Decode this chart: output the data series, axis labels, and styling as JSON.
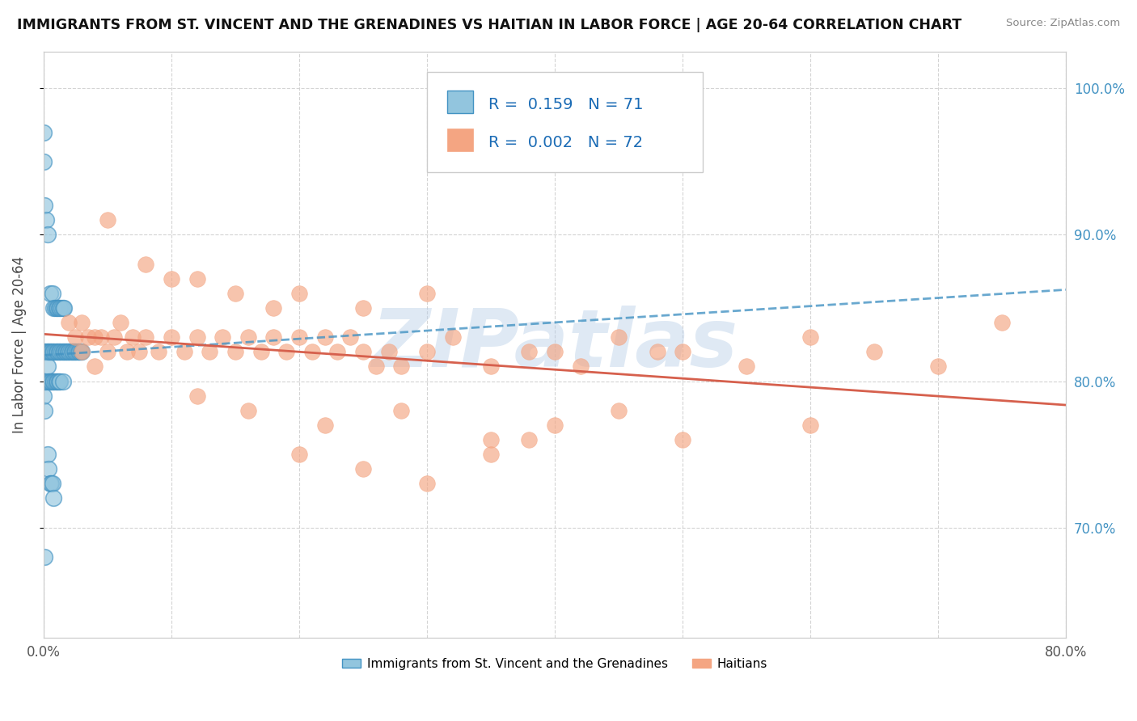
{
  "title": "IMMIGRANTS FROM ST. VINCENT AND THE GRENADINES VS HAITIAN IN LABOR FORCE | AGE 20-64 CORRELATION CHART",
  "source": "Source: ZipAtlas.com",
  "ylabel": "In Labor Force | Age 20-64",
  "xlim": [
    0.0,
    0.8
  ],
  "ylim": [
    0.625,
    1.025
  ],
  "yticks": [
    0.7,
    0.8,
    0.9,
    1.0
  ],
  "ytick_labels_left": [
    "70.0%",
    "80.0%",
    "90.0%",
    "100.0%"
  ],
  "ytick_labels_right": [
    "70.0%",
    "80.0%",
    "90.0%",
    "100.0%"
  ],
  "xtick_vals": [
    0.0,
    0.1,
    0.2,
    0.3,
    0.4,
    0.5,
    0.6,
    0.7,
    0.8
  ],
  "xtick_labels": [
    "0.0%",
    "",
    "",
    "",
    "",
    "",
    "",
    "",
    "80.0%"
  ],
  "color_blue": "#92c5de",
  "color_blue_edge": "#4393c3",
  "color_pink": "#f4a582",
  "color_pink_line": "#d6604d",
  "color_blue_line": "#4393c3",
  "watermark": "ZIPatlas",
  "watermark_color": "#b8cfe8",
  "legend1_label": "Immigrants from St. Vincent and the Grenadines",
  "legend2_label": "Haitians",
  "background_color": "#ffffff",
  "grid_color": "#d0d0d0",
  "blue_scatter_x": [
    0.0,
    0.0,
    0.0,
    0.001,
    0.001,
    0.001,
    0.002,
    0.002,
    0.003,
    0.003,
    0.004,
    0.004,
    0.005,
    0.005,
    0.006,
    0.006,
    0.007,
    0.007,
    0.008,
    0.008,
    0.009,
    0.009,
    0.01,
    0.01,
    0.011,
    0.011,
    0.012,
    0.012,
    0.013,
    0.013,
    0.014,
    0.015,
    0.015,
    0.016,
    0.017,
    0.018,
    0.019,
    0.02,
    0.021,
    0.022,
    0.023,
    0.024,
    0.025,
    0.026,
    0.027,
    0.028,
    0.029,
    0.03,
    0.005,
    0.007,
    0.008,
    0.009,
    0.01,
    0.011,
    0.012,
    0.013,
    0.014,
    0.015,
    0.016,
    0.003,
    0.004,
    0.005,
    0.006,
    0.007,
    0.008,
    0.001,
    0.002,
    0.003,
    0.0,
    0.0,
    0.001
  ],
  "blue_scatter_y": [
    0.82,
    0.8,
    0.79,
    0.82,
    0.8,
    0.78,
    0.82,
    0.8,
    0.82,
    0.81,
    0.82,
    0.8,
    0.82,
    0.8,
    0.82,
    0.8,
    0.82,
    0.8,
    0.82,
    0.8,
    0.82,
    0.8,
    0.82,
    0.8,
    0.82,
    0.8,
    0.82,
    0.8,
    0.82,
    0.8,
    0.82,
    0.82,
    0.8,
    0.82,
    0.82,
    0.82,
    0.82,
    0.82,
    0.82,
    0.82,
    0.82,
    0.82,
    0.82,
    0.82,
    0.82,
    0.82,
    0.82,
    0.82,
    0.86,
    0.86,
    0.85,
    0.85,
    0.85,
    0.85,
    0.85,
    0.85,
    0.85,
    0.85,
    0.85,
    0.75,
    0.74,
    0.73,
    0.73,
    0.73,
    0.72,
    0.92,
    0.91,
    0.9,
    0.97,
    0.95,
    0.68
  ],
  "pink_scatter_x": [
    0.02,
    0.025,
    0.03,
    0.03,
    0.035,
    0.04,
    0.04,
    0.045,
    0.05,
    0.055,
    0.06,
    0.065,
    0.07,
    0.075,
    0.08,
    0.09,
    0.1,
    0.11,
    0.12,
    0.13,
    0.14,
    0.15,
    0.16,
    0.17,
    0.18,
    0.19,
    0.2,
    0.21,
    0.22,
    0.23,
    0.24,
    0.25,
    0.26,
    0.27,
    0.28,
    0.3,
    0.32,
    0.35,
    0.38,
    0.4,
    0.42,
    0.45,
    0.48,
    0.5,
    0.55,
    0.6,
    0.65,
    0.7,
    0.75,
    0.3,
    0.25,
    0.2,
    0.15,
    0.1,
    0.05,
    0.08,
    0.12,
    0.18,
    0.35,
    0.5,
    0.6,
    0.45,
    0.38,
    0.28,
    0.22,
    0.16,
    0.12,
    0.3,
    0.25,
    0.2,
    0.4,
    0.35
  ],
  "pink_scatter_y": [
    0.84,
    0.83,
    0.84,
    0.82,
    0.83,
    0.83,
    0.81,
    0.83,
    0.82,
    0.83,
    0.84,
    0.82,
    0.83,
    0.82,
    0.83,
    0.82,
    0.83,
    0.82,
    0.83,
    0.82,
    0.83,
    0.82,
    0.83,
    0.82,
    0.83,
    0.82,
    0.83,
    0.82,
    0.83,
    0.82,
    0.83,
    0.82,
    0.81,
    0.82,
    0.81,
    0.82,
    0.83,
    0.81,
    0.82,
    0.82,
    0.81,
    0.83,
    0.82,
    0.82,
    0.81,
    0.83,
    0.82,
    0.81,
    0.84,
    0.86,
    0.85,
    0.86,
    0.86,
    0.87,
    0.91,
    0.88,
    0.87,
    0.85,
    0.76,
    0.76,
    0.77,
    0.78,
    0.76,
    0.78,
    0.77,
    0.78,
    0.79,
    0.73,
    0.74,
    0.75,
    0.77,
    0.75
  ],
  "right_ytick_color": "#4393c3"
}
